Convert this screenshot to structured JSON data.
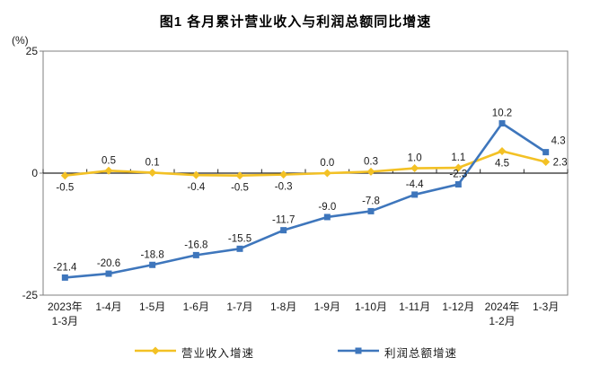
{
  "chart_data": {
    "type": "line",
    "title": "图1 各月累计营业收入与利润总额同比增速",
    "unit_label": "(%)",
    "categories": [
      [
        "2023年",
        "1-3月"
      ],
      [
        "1-4月"
      ],
      [
        "1-5月"
      ],
      [
        "1-6月"
      ],
      [
        "1-7月"
      ],
      [
        "1-8月"
      ],
      [
        "1-9月"
      ],
      [
        "1-10月"
      ],
      [
        "1-11月"
      ],
      [
        "1-12月"
      ],
      [
        "2024年",
        "1-2月"
      ],
      [
        "1-3月"
      ]
    ],
    "ylim": [
      -25,
      25
    ],
    "yticks": [
      25,
      0,
      -25
    ],
    "grid": false,
    "legend_position": "bottom",
    "series": [
      {
        "id": "revenue",
        "name": "营业收入增速",
        "color": "#F3C125",
        "marker": "diamond",
        "values": [
          -0.5,
          0.5,
          0.1,
          -0.4,
          -0.5,
          -0.3,
          0.0,
          0.3,
          1.0,
          1.1,
          4.5,
          2.3
        ],
        "labels": [
          "-0.5",
          "0.5",
          "0.1",
          "-0.4",
          "-0.5",
          "-0.3",
          "0.0",
          "0.3",
          "1.0",
          "1.1",
          "4.5",
          "2.3"
        ],
        "label_pos": [
          "below",
          "above",
          "above",
          "below",
          "below",
          "below",
          "above",
          "above",
          "above",
          "above",
          "below",
          "right"
        ]
      },
      {
        "id": "profit",
        "name": "利润总额增速",
        "color": "#3E76BC",
        "marker": "square",
        "values": [
          -21.4,
          -20.6,
          -18.8,
          -16.8,
          -15.5,
          -11.7,
          -9.0,
          -7.8,
          -4.4,
          -2.3,
          10.2,
          4.3
        ],
        "labels": [
          "-21.4",
          "-20.6",
          "-18.8",
          "-16.8",
          "-15.5",
          "-11.7",
          "-9.0",
          "-7.8",
          "-4.4",
          "-2.3",
          "10.2",
          "4.3"
        ],
        "label_pos": [
          "above",
          "above",
          "above",
          "above",
          "above",
          "above",
          "above",
          "above",
          "above",
          "above",
          "above",
          "above-right"
        ]
      }
    ]
  }
}
